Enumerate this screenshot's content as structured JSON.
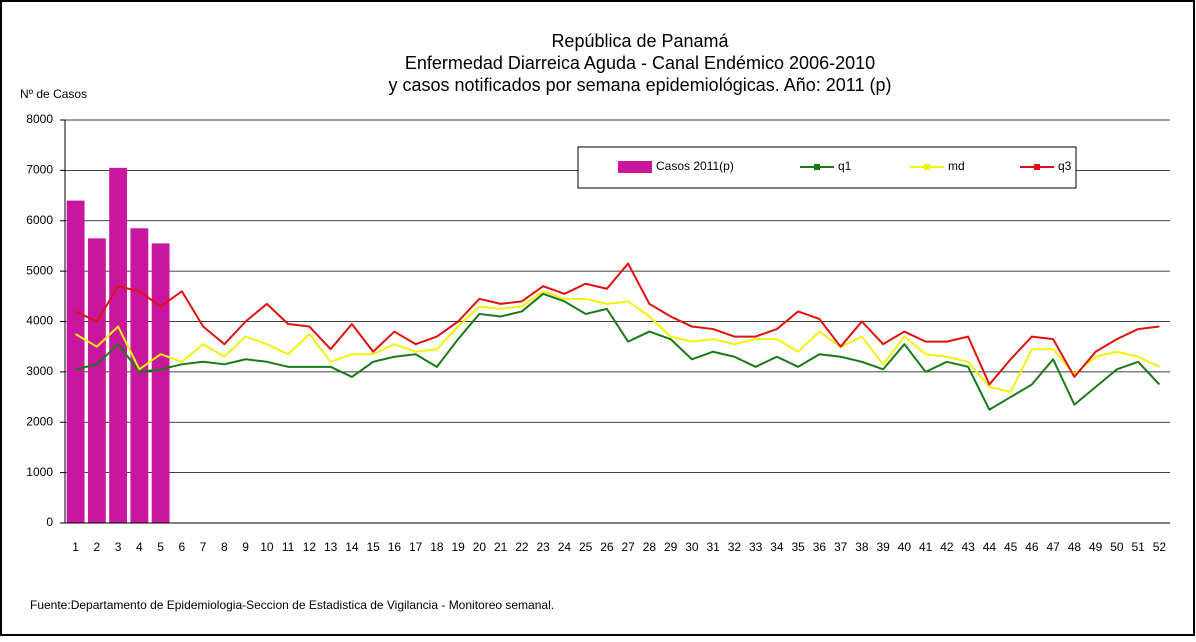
{
  "chart_data": {
    "type": "bar-line",
    "title": [
      "República de Panamá",
      "Enfermedad Diarreica Aguda - Canal Endémico 2006-2010",
      "y casos notificados por semana epidemiológicas.  Año: 2011 (p)"
    ],
    "y_label": "Nº de Casos",
    "footnote": "Fuente:Departamento de Epidemiologia-Seccion de Estadistica de Vigilancia - Monitoreo semanal.",
    "categories": [
      "1",
      "2",
      "3",
      "4",
      "5",
      "6",
      "7",
      "8",
      "9",
      "10",
      "11",
      "12",
      "13",
      "14",
      "15",
      "16",
      "17",
      "18",
      "19",
      "20",
      "21",
      "22",
      "23",
      "24",
      "25",
      "26",
      "27",
      "28",
      "29",
      "30",
      "31",
      "32",
      "33",
      "34",
      "35",
      "36",
      "37",
      "38",
      "39",
      "40",
      "41",
      "42",
      "43",
      "44",
      "45",
      "46",
      "47",
      "48",
      "49",
      "50",
      "51",
      "52"
    ],
    "series": [
      {
        "name": "Casos 2011(p)",
        "kind": "bar",
        "color": "#c8179e",
        "values": [
          6400,
          5650,
          7050,
          5850,
          5550,
          null,
          null,
          null,
          null,
          null,
          null,
          null,
          null,
          null,
          null,
          null,
          null,
          null,
          null,
          null,
          null,
          null,
          null,
          null,
          null,
          null,
          null,
          null,
          null,
          null,
          null,
          null,
          null,
          null,
          null,
          null,
          null,
          null,
          null,
          null,
          null,
          null,
          null,
          null,
          null,
          null,
          null,
          null,
          null,
          null,
          null,
          null
        ]
      },
      {
        "name": "q1",
        "kind": "line",
        "color": "#1a7a1a",
        "values": [
          3050,
          3150,
          3550,
          3000,
          3050,
          3150,
          3200,
          3150,
          3250,
          3200,
          3100,
          3100,
          3100,
          2900,
          3200,
          3300,
          3350,
          3100,
          3650,
          4150,
          4100,
          4200,
          4550,
          4400,
          4150,
          4250,
          3600,
          3800,
          3650,
          3250,
          3400,
          3300,
          3100,
          3300,
          3100,
          3350,
          3300,
          3200,
          3050,
          3550,
          3000,
          3200,
          3100,
          2250,
          2500,
          2750,
          3250,
          2350,
          2700,
          3050,
          3200,
          2750
        ]
      },
      {
        "name": "md",
        "kind": "line",
        "color": "#f2f20a",
        "values": [
          3750,
          3500,
          3900,
          3050,
          3350,
          3200,
          3550,
          3300,
          3700,
          3550,
          3350,
          3750,
          3200,
          3350,
          3350,
          3550,
          3400,
          3450,
          3900,
          4300,
          4250,
          4300,
          4600,
          4450,
          4450,
          4350,
          4400,
          4100,
          3700,
          3600,
          3650,
          3550,
          3650,
          3650,
          3400,
          3800,
          3500,
          3700,
          3150,
          3700,
          3350,
          3300,
          3200,
          2700,
          2600,
          3450,
          3450,
          2950,
          3300,
          3400,
          3300,
          3100
        ]
      },
      {
        "name": "q3",
        "kind": "line",
        "color": "#e01010",
        "values": [
          4200,
          4000,
          4700,
          4600,
          4300,
          4600,
          3900,
          3550,
          4000,
          4350,
          3950,
          3900,
          3450,
          3950,
          3400,
          3800,
          3550,
          3700,
          4000,
          4450,
          4350,
          4400,
          4700,
          4550,
          4750,
          4650,
          5150,
          4350,
          4100,
          3900,
          3850,
          3700,
          3700,
          3850,
          4200,
          4050,
          3500,
          4000,
          3550,
          3800,
          3600,
          3600,
          3700,
          2750,
          3250,
          3700,
          3650,
          2900,
          3400,
          3650,
          3850,
          3900
        ]
      }
    ],
    "ylim": [
      0,
      8000
    ],
    "yticks": [
      0,
      1000,
      2000,
      3000,
      4000,
      5000,
      6000,
      7000,
      8000
    ],
    "grid": true
  }
}
